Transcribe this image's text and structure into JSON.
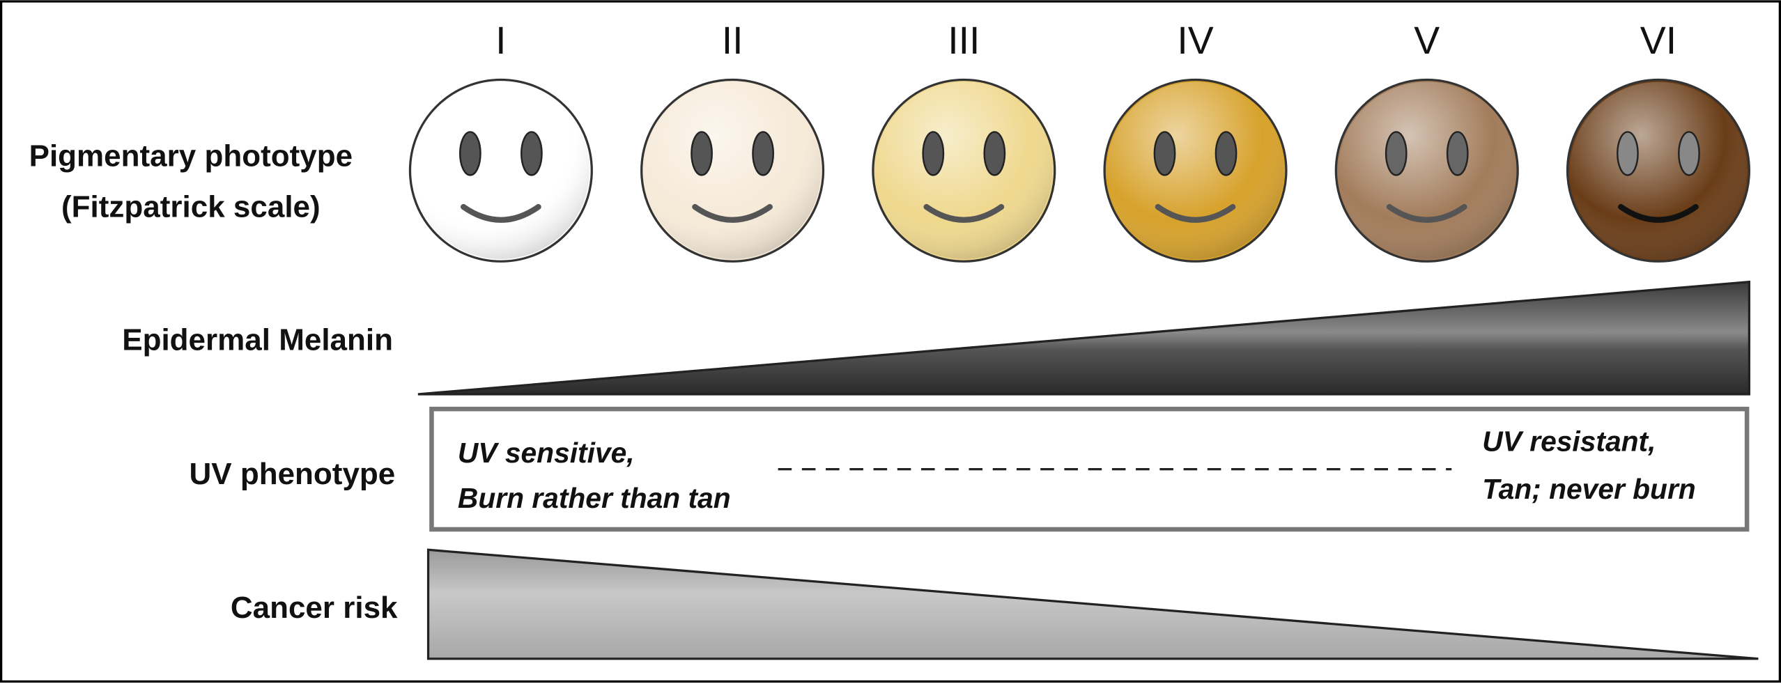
{
  "numerals": [
    "I",
    "II",
    "III",
    "IV",
    "V",
    "VI"
  ],
  "labels": {
    "phototype": [
      "Pigmentary phototype",
      "(Fitzpatrick scale)"
    ],
    "melanin": "Epidermal Melanin",
    "uv": "UV phenotype",
    "cancer": "Cancer risk"
  },
  "uv_box": {
    "left": [
      "UV sensitive,",
      "Burn rather than tan"
    ],
    "right": [
      "UV resistant,",
      "Tan; never burn"
    ]
  }
}
